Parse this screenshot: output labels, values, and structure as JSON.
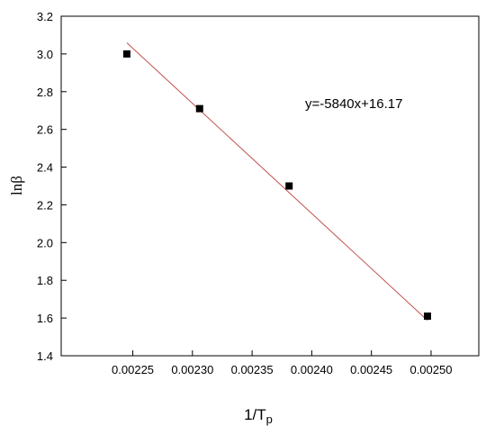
{
  "chart_data": {
    "type": "scatter",
    "title": "",
    "xlabel": "1/T",
    "xlabel_sub": "p",
    "ylabel": "lnβ",
    "xlim": [
      0.00219,
      0.00254
    ],
    "ylim": [
      1.4,
      3.2
    ],
    "x_ticks": [
      "0.00225",
      "0.00230",
      "0.00235",
      "0.00240",
      "0.00245",
      "0.00250"
    ],
    "x_tick_values": [
      0.00225,
      0.0023,
      0.00235,
      0.0024,
      0.00245,
      0.0025
    ],
    "y_ticks": [
      "1.4",
      "1.6",
      "1.8",
      "2.0",
      "2.2",
      "2.4",
      "2.6",
      "2.8",
      "3.0",
      "3.2"
    ],
    "y_tick_values": [
      1.4,
      1.6,
      1.8,
      2.0,
      2.2,
      2.4,
      2.6,
      2.8,
      3.0,
      3.2
    ],
    "grid": false,
    "series": [
      {
        "points": [
          {
            "x": 0.002245,
            "y": 3.0
          },
          {
            "x": 0.002306,
            "y": 2.71
          },
          {
            "x": 0.002381,
            "y": 2.3
          },
          {
            "x": 0.002497,
            "y": 1.61
          }
        ],
        "marker": "square",
        "color": "#000000"
      }
    ],
    "fit_line": {
      "slope": -5840,
      "intercept": 16.17,
      "x_range": [
        0.002245,
        0.002497
      ],
      "color": "#c0504d"
    },
    "annotation": "y=-5840x+16.17"
  }
}
